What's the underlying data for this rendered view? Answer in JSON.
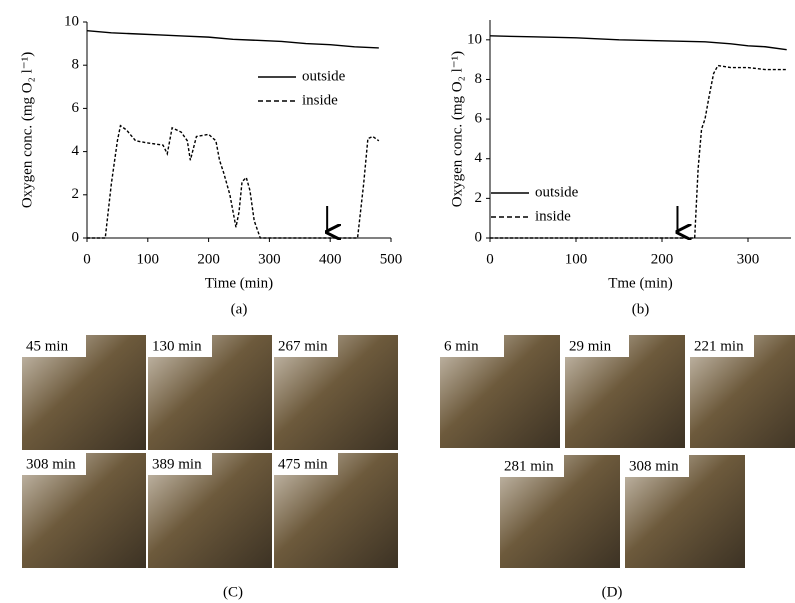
{
  "chart_data": [
    {
      "type": "line",
      "caption": "(a)",
      "x_label": "Time (min)",
      "y_label": "Oxygen conc. (mg O₂ l⁻¹)",
      "xlim": [
        0,
        500
      ],
      "xticks": [
        0,
        100,
        200,
        300,
        400,
        500
      ],
      "ylim": [
        0,
        10
      ],
      "yticks": [
        0,
        2,
        4,
        6,
        8,
        10
      ],
      "legend": "right",
      "arrow_x": 395,
      "series": [
        {
          "name": "outside",
          "color": "#000000",
          "dash": false,
          "x": [
            0,
            40,
            80,
            120,
            160,
            200,
            240,
            280,
            320,
            360,
            400,
            440,
            480
          ],
          "values": [
            9.6,
            9.5,
            9.45,
            9.4,
            9.35,
            9.3,
            9.2,
            9.15,
            9.1,
            9.0,
            8.95,
            8.85,
            8.8
          ]
        },
        {
          "name": "inside",
          "color": "#000000",
          "dash": true,
          "x": [
            0,
            30,
            40,
            50,
            55,
            65,
            80,
            100,
            125,
            132,
            140,
            155,
            165,
            170,
            180,
            200,
            212,
            218,
            225,
            235,
            245,
            250,
            255,
            262,
            268,
            275,
            285,
            300,
            400,
            445,
            455,
            462,
            470,
            480
          ],
          "values": [
            0,
            0,
            2.5,
            4.5,
            5.2,
            5.0,
            4.5,
            4.4,
            4.3,
            3.9,
            5.1,
            4.9,
            4.5,
            3.6,
            4.7,
            4.8,
            4.5,
            3.6,
            3.0,
            2.0,
            0.5,
            1.2,
            2.6,
            2.8,
            2.2,
            0.8,
            0,
            0,
            0,
            0,
            2.5,
            4.6,
            4.7,
            4.5
          ]
        }
      ]
    },
    {
      "type": "line",
      "caption": "(b)",
      "x_label": "Tme (min)",
      "y_label": "Oxygen conc. (mg O₂ l⁻¹)",
      "xlim": [
        0,
        350
      ],
      "xticks": [
        0,
        100,
        200,
        300
      ],
      "ylim": [
        0,
        11
      ],
      "yticks": [
        0,
        2,
        4,
        6,
        8,
        10
      ],
      "legend": "lower left",
      "arrow_x": 218,
      "series": [
        {
          "name": "outside",
          "color": "#000000",
          "dash": false,
          "x": [
            0,
            50,
            100,
            150,
            200,
            250,
            280,
            300,
            320,
            345
          ],
          "values": [
            10.2,
            10.15,
            10.1,
            10.0,
            9.95,
            9.9,
            9.8,
            9.7,
            9.65,
            9.5
          ]
        },
        {
          "name": "inside",
          "color": "#000000",
          "dash": true,
          "x": [
            0,
            238,
            242,
            246,
            250,
            255,
            260,
            265,
            280,
            300,
            320,
            345
          ],
          "values": [
            0,
            0,
            3.5,
            5.5,
            6.0,
            7.2,
            8.3,
            8.7,
            8.6,
            8.6,
            8.5,
            8.5
          ]
        }
      ]
    }
  ],
  "photos_c": {
    "caption": "(C)",
    "labels": [
      "45 min",
      "130 min",
      "267 min",
      "308 min",
      "389 min",
      "475 min"
    ]
  },
  "photos_d": {
    "caption": "(D)",
    "labels": [
      "6 min",
      "29 min",
      "221 min",
      "281 min",
      "308 min"
    ]
  }
}
